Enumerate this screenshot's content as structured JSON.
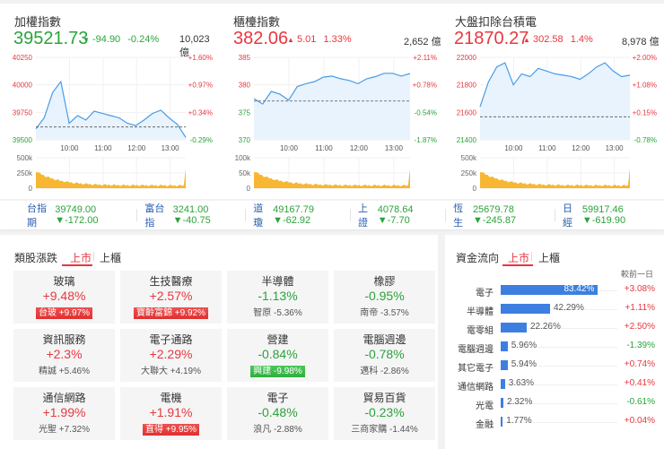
{
  "colors": {
    "up": "#e8373f",
    "down": "#2aa33b",
    "line": "#4a9be6",
    "area": "#e8f3fd",
    "volume": "#f7b733",
    "bar": "#3d7fe0",
    "link": "#2a5eb0"
  },
  "indices": [
    {
      "name": "加權指數",
      "price": "39521.73",
      "direction": "down",
      "arrow": "▼",
      "change": "-94.90",
      "percent": "-0.24%",
      "volume": "10,023 億",
      "y_left": [
        "40250",
        "40000",
        "39750",
        "39500"
      ],
      "y_left_colors": [
        "up",
        "up",
        "up",
        "down"
      ],
      "y_right": [
        "+1.60%",
        "+0.97%",
        "+0.34%",
        "-0.29%"
      ],
      "y_right_colors": [
        "up",
        "up",
        "up",
        "down"
      ],
      "x_ticks": [
        "10:00",
        "11:00",
        "12:00",
        "13:00"
      ],
      "vol_ticks": [
        "500k",
        "250k",
        "0"
      ]
    },
    {
      "name": "櫃檯指數",
      "price": "382.06",
      "direction": "up",
      "arrow": "▲",
      "change": "5.01",
      "percent": "1.33%",
      "volume": "2,652 億",
      "y_left": [
        "385",
        "380",
        "375",
        "370"
      ],
      "y_left_colors": [
        "up",
        "up",
        "down",
        "down"
      ],
      "y_right": [
        "+2.11%",
        "+0.78%",
        "-0.54%",
        "-1.87%"
      ],
      "y_right_colors": [
        "up",
        "up",
        "down",
        "down"
      ],
      "x_ticks": [
        "10:00",
        "11:00",
        "12:00",
        "13:00"
      ],
      "vol_ticks": [
        "100k",
        "50k",
        "0"
      ]
    },
    {
      "name": "大盤扣除台積電",
      "price": "21870.27",
      "direction": "up",
      "arrow": "▲",
      "change": "302.58",
      "percent": "1.4%",
      "volume": "8,978 億",
      "y_left": [
        "22000",
        "21800",
        "21600",
        "21400"
      ],
      "y_left_colors": [
        "up",
        "up",
        "up",
        "down"
      ],
      "y_right": [
        "+2.00%",
        "+1.08%",
        "+0.15%",
        "-0.78%"
      ],
      "y_right_colors": [
        "up",
        "up",
        "up",
        "down"
      ],
      "x_ticks": [
        "10:00",
        "11:00",
        "12:00",
        "13:00"
      ],
      "vol_ticks": [
        "500k",
        "250k",
        "0"
      ]
    }
  ],
  "chart_data": [
    {
      "type": "line",
      "title": "加權指數",
      "xlabel": "",
      "ylabel": "",
      "x": [
        "09:00",
        "09:15",
        "09:30",
        "09:45",
        "10:00",
        "10:15",
        "10:30",
        "10:45",
        "11:00",
        "11:15",
        "11:30",
        "11:45",
        "12:00",
        "12:15",
        "12:30",
        "12:45",
        "13:00",
        "13:15",
        "13:25"
      ],
      "values": [
        39600,
        39700,
        39930,
        40030,
        39650,
        39720,
        39680,
        39760,
        39740,
        39720,
        39700,
        39650,
        39630,
        39680,
        39740,
        39770,
        39700,
        39640,
        39521.73
      ],
      "reference": 39616.63,
      "ylim": [
        39500,
        40250
      ]
    },
    {
      "type": "line",
      "title": "櫃檯指數",
      "xlabel": "",
      "ylabel": "",
      "x": [
        "09:00",
        "09:15",
        "09:30",
        "09:45",
        "10:00",
        "10:15",
        "10:30",
        "10:45",
        "11:00",
        "11:15",
        "11:30",
        "11:45",
        "12:00",
        "12:15",
        "12:30",
        "12:45",
        "13:00",
        "13:15",
        "13:25"
      ],
      "values": [
        377.5,
        376.5,
        378.8,
        378.3,
        377.2,
        379.7,
        380.2,
        380.6,
        381.4,
        381.6,
        381.1,
        380.8,
        380.2,
        381.1,
        381.5,
        382.1,
        382.1,
        381.6,
        382.06
      ],
      "reference": 377.05,
      "ylim": [
        370,
        385
      ]
    },
    {
      "type": "line",
      "title": "大盤扣除台積電",
      "xlabel": "",
      "ylabel": "",
      "x": [
        "09:00",
        "09:15",
        "09:30",
        "09:45",
        "10:00",
        "10:15",
        "10:30",
        "10:45",
        "11:00",
        "11:15",
        "11:30",
        "11:45",
        "12:00",
        "12:15",
        "12:30",
        "12:45",
        "13:00",
        "13:15",
        "13:25"
      ],
      "values": [
        21640,
        21820,
        21930,
        21960,
        21800,
        21880,
        21860,
        21920,
        21900,
        21880,
        21870,
        21860,
        21840,
        21880,
        21930,
        21960,
        21900,
        21860,
        21870.27
      ],
      "reference": 21567.69,
      "ylim": [
        21400,
        22000
      ]
    }
  ],
  "ticker": [
    {
      "name": "台指期",
      "value": "39749.00 ▼-172.00"
    },
    {
      "name": "富台指",
      "value": "3241.00 ▼-40.75"
    },
    {
      "name": "道瓊",
      "value": "49167.79 ▼-62.92"
    },
    {
      "name": "上證",
      "value": "4078.64 ▼-7.70"
    },
    {
      "name": "恆生",
      "value": "25679.78 ▼-245.87"
    },
    {
      "name": "日經",
      "value": "59917.46 ▼-619.90"
    }
  ],
  "sectors": {
    "title": "類股漲跌",
    "tabs": [
      {
        "label": "上市",
        "active": true
      },
      {
        "label": "上櫃",
        "active": false
      }
    ],
    "items": [
      {
        "name": "玻璃",
        "pct": "+9.48%",
        "dir": "up",
        "sub": "台玻  +9.97%",
        "hl": "up"
      },
      {
        "name": "生技醫療",
        "pct": "+2.57%",
        "dir": "up",
        "sub": "寶齡富錦  +9.92%",
        "hl": "up"
      },
      {
        "name": "半導體",
        "pct": "-1.13%",
        "dir": "down",
        "sub": "智原  -5.36%",
        "hl": ""
      },
      {
        "name": "橡膠",
        "pct": "-0.95%",
        "dir": "down",
        "sub": "南帝  -3.57%",
        "hl": ""
      },
      {
        "name": "資訊服務",
        "pct": "+2.3%",
        "dir": "up",
        "sub": "精誠  +5.46%",
        "hl": ""
      },
      {
        "name": "電子通路",
        "pct": "+2.29%",
        "dir": "up",
        "sub": "大聯大  +4.19%",
        "hl": ""
      },
      {
        "name": "營建",
        "pct": "-0.84%",
        "dir": "down",
        "sub": "興建  -9.98%",
        "hl": "down"
      },
      {
        "name": "電腦週邊",
        "pct": "-0.78%",
        "dir": "down",
        "sub": "邁科  -2.86%",
        "hl": ""
      },
      {
        "name": "通信網路",
        "pct": "+1.99%",
        "dir": "up",
        "sub": "光聖  +7.32%",
        "hl": ""
      },
      {
        "name": "電機",
        "pct": "+1.91%",
        "dir": "up",
        "sub": "直得  +9.95%",
        "hl": "up"
      },
      {
        "name": "電子",
        "pct": "-0.48%",
        "dir": "down",
        "sub": "浪凡  -2.88%",
        "hl": ""
      },
      {
        "name": "貿易百貨",
        "pct": "-0.23%",
        "dir": "down",
        "sub": "三商家購  -1.44%",
        "hl": ""
      }
    ]
  },
  "fund_flow": {
    "title": "資金流向",
    "tabs": [
      {
        "label": "上市",
        "active": true
      },
      {
        "label": "上櫃",
        "active": false
      }
    ],
    "column_header": "較前一日",
    "rows": [
      {
        "label": "電子",
        "pct": "83.42%",
        "value": 83.42,
        "change": "+3.08%",
        "dir": "up"
      },
      {
        "label": "半導體",
        "pct": "42.29%",
        "value": 42.29,
        "change": "+1.11%",
        "dir": "up"
      },
      {
        "label": "電零組",
        "pct": "22.26%",
        "value": 22.26,
        "change": "+2.50%",
        "dir": "up"
      },
      {
        "label": "電腦週邊",
        "pct": "5.96%",
        "value": 5.96,
        "change": "-1.39%",
        "dir": "down"
      },
      {
        "label": "其它電子",
        "pct": "5.94%",
        "value": 5.94,
        "change": "+0.74%",
        "dir": "up"
      },
      {
        "label": "通信網路",
        "pct": "3.63%",
        "value": 3.63,
        "change": "+0.41%",
        "dir": "up"
      },
      {
        "label": "光電",
        "pct": "2.32%",
        "value": 2.32,
        "change": "-0.61%",
        "dir": "down"
      },
      {
        "label": "金融",
        "pct": "1.77%",
        "value": 1.77,
        "change": "+0.04%",
        "dir": "up"
      }
    ]
  }
}
